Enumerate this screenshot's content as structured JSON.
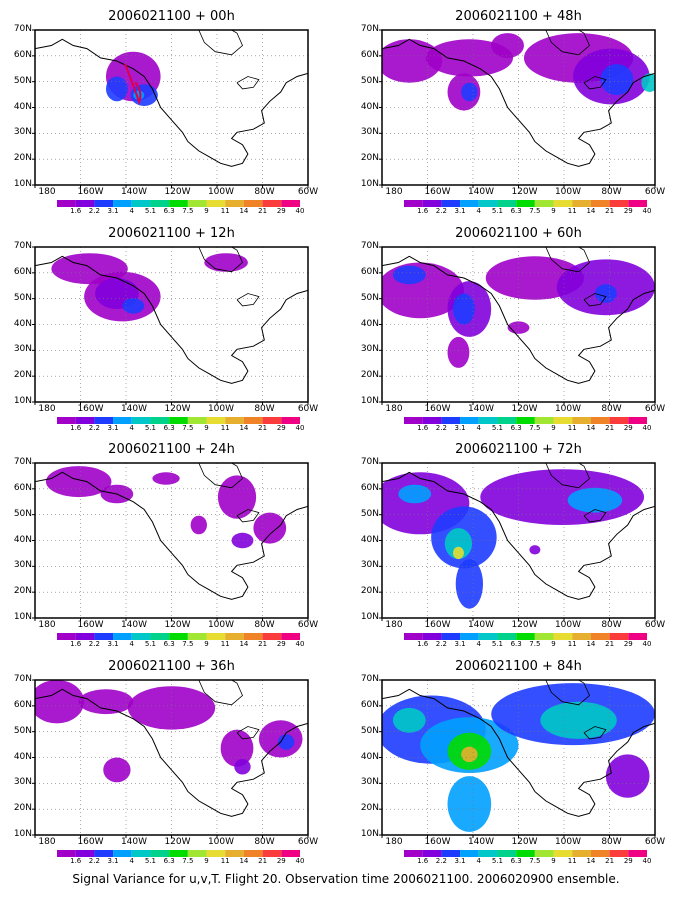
{
  "figure": {
    "caption": "Signal Variance for u,v,T. Flight 20. Observation time 2006021100. 2006020900 ensemble."
  },
  "axes": {
    "lat_labels": [
      "70N",
      "60N",
      "50N",
      "40N",
      "30N",
      "20N",
      "10N"
    ],
    "lon_labels": [
      "180",
      "160W",
      "140W",
      "120W",
      "100W",
      "80W",
      "60W"
    ]
  },
  "colorbar": {
    "labels": [
      "1.6",
      "2.2",
      "3.1",
      "4",
      "5.1",
      "6.3",
      "7.5",
      "9",
      "11",
      "14",
      "21",
      "29",
      "40"
    ],
    "colors": [
      "#a000c8",
      "#8200dc",
      "#1e3cff",
      "#00a0ff",
      "#00c8c8",
      "#00d28c",
      "#00dc00",
      "#a0e632",
      "#e6dc32",
      "#e6af2d",
      "#f08228",
      "#fa3c3c",
      "#f00082"
    ]
  },
  "panels": [
    {
      "title": "2006021100 + 00h",
      "lead": "00h"
    },
    {
      "title": "2006021100 + 12h",
      "lead": "12h"
    },
    {
      "title": "2006021100 + 24h",
      "lead": "24h"
    },
    {
      "title": "2006021100 + 36h",
      "lead": "36h"
    },
    {
      "title": "2006021100 + 48h",
      "lead": "48h"
    },
    {
      "title": "2006021100 + 60h",
      "lead": "60h"
    },
    {
      "title": "2006021100 + 72h",
      "lead": "72h"
    },
    {
      "title": "2006021100 + 84h",
      "lead": "84h"
    }
  ]
}
